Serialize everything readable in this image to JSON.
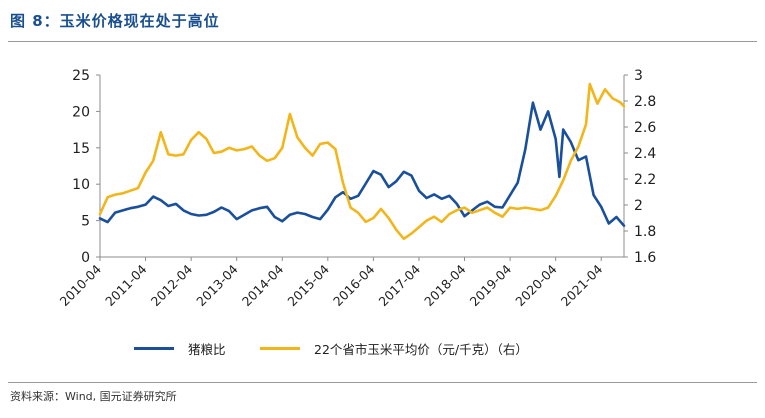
{
  "header": {
    "title": "图 8：玉米价格现在处于高位"
  },
  "footer": {
    "source": "资料来源：Wind, 国元证券研究所"
  },
  "chart_data": {
    "type": "line",
    "title": "",
    "xlabel": "",
    "ylabel": "",
    "x_tick_labels": [
      "2010-04",
      "2011-04",
      "2012-04",
      "2013-04",
      "2014-04",
      "2015-04",
      "2016-04",
      "2017-04",
      "2018-04",
      "2019-04",
      "2020-04",
      "2021-04"
    ],
    "x_range": [
      "2010-04",
      "2021-10"
    ],
    "y_left": {
      "ylim": [
        0,
        25
      ],
      "ticks": [
        "0",
        "5",
        "10",
        "15",
        "20",
        "25"
      ]
    },
    "y_right": {
      "ylim": [
        1.6,
        3.0
      ],
      "ticks": [
        "1.6",
        "1.8",
        "2",
        "2.2",
        "2.4",
        "2.6",
        "2.8",
        "3"
      ]
    },
    "grid": false,
    "legend_position": "bottom",
    "series": [
      {
        "name": "猪粮比",
        "axis": "left",
        "color": "#1a4f9c",
        "points": [
          [
            "2010-04",
            5.3
          ],
          [
            "2010-06",
            4.8
          ],
          [
            "2010-08",
            6.1
          ],
          [
            "2010-10",
            6.4
          ],
          [
            "2010-12",
            6.7
          ],
          [
            "2011-02",
            6.9
          ],
          [
            "2011-04",
            7.2
          ],
          [
            "2011-06",
            8.3
          ],
          [
            "2011-08",
            7.8
          ],
          [
            "2011-10",
            7.0
          ],
          [
            "2011-12",
            7.3
          ],
          [
            "2012-02",
            6.4
          ],
          [
            "2012-04",
            5.9
          ],
          [
            "2012-06",
            5.7
          ],
          [
            "2012-08",
            5.8
          ],
          [
            "2012-10",
            6.2
          ],
          [
            "2012-12",
            6.8
          ],
          [
            "2013-02",
            6.3
          ],
          [
            "2013-04",
            5.2
          ],
          [
            "2013-06",
            5.8
          ],
          [
            "2013-08",
            6.4
          ],
          [
            "2013-10",
            6.7
          ],
          [
            "2013-12",
            6.9
          ],
          [
            "2014-02",
            5.5
          ],
          [
            "2014-04",
            4.9
          ],
          [
            "2014-06",
            5.8
          ],
          [
            "2014-08",
            6.1
          ],
          [
            "2014-10",
            5.9
          ],
          [
            "2014-12",
            5.5
          ],
          [
            "2015-02",
            5.2
          ],
          [
            "2015-04",
            6.5
          ],
          [
            "2015-06",
            8.2
          ],
          [
            "2015-08",
            8.9
          ],
          [
            "2015-10",
            8.0
          ],
          [
            "2015-12",
            8.4
          ],
          [
            "2016-02",
            10.1
          ],
          [
            "2016-04",
            11.8
          ],
          [
            "2016-06",
            11.3
          ],
          [
            "2016-08",
            9.6
          ],
          [
            "2016-10",
            10.4
          ],
          [
            "2016-12",
            11.7
          ],
          [
            "2017-02",
            11.2
          ],
          [
            "2017-04",
            9.1
          ],
          [
            "2017-06",
            8.1
          ],
          [
            "2017-08",
            8.6
          ],
          [
            "2017-10",
            8.0
          ],
          [
            "2017-12",
            8.4
          ],
          [
            "2018-02",
            7.3
          ],
          [
            "2018-04",
            5.6
          ],
          [
            "2018-06",
            6.4
          ],
          [
            "2018-08",
            7.2
          ],
          [
            "2018-10",
            7.6
          ],
          [
            "2018-12",
            6.9
          ],
          [
            "2019-02",
            6.8
          ],
          [
            "2019-04",
            8.5
          ],
          [
            "2019-06",
            10.2
          ],
          [
            "2019-08",
            14.8
          ],
          [
            "2019-10",
            21.2
          ],
          [
            "2019-12",
            17.5
          ],
          [
            "2020-02",
            20.0
          ],
          [
            "2020-04",
            16.2
          ],
          [
            "2020-05",
            11.0
          ],
          [
            "2020-06",
            17.5
          ],
          [
            "2020-08",
            15.8
          ],
          [
            "2020-10",
            13.3
          ],
          [
            "2020-12",
            13.8
          ],
          [
            "2021-02",
            8.5
          ],
          [
            "2021-04",
            6.9
          ],
          [
            "2021-06",
            4.6
          ],
          [
            "2021-08",
            5.5
          ],
          [
            "2021-10",
            4.3
          ]
        ]
      },
      {
        "name": "22个省市玉米平均价（元/千克）（右）",
        "axis": "right",
        "color": "#f2b61a",
        "points": [
          [
            "2010-04",
            1.93
          ],
          [
            "2010-06",
            2.06
          ],
          [
            "2010-08",
            2.08
          ],
          [
            "2010-10",
            2.09
          ],
          [
            "2010-12",
            2.11
          ],
          [
            "2011-02",
            2.13
          ],
          [
            "2011-04",
            2.25
          ],
          [
            "2011-06",
            2.34
          ],
          [
            "2011-08",
            2.56
          ],
          [
            "2011-10",
            2.39
          ],
          [
            "2011-12",
            2.38
          ],
          [
            "2012-02",
            2.39
          ],
          [
            "2012-04",
            2.5
          ],
          [
            "2012-06",
            2.56
          ],
          [
            "2012-08",
            2.51
          ],
          [
            "2012-10",
            2.4
          ],
          [
            "2012-12",
            2.41
          ],
          [
            "2013-02",
            2.44
          ],
          [
            "2013-04",
            2.42
          ],
          [
            "2013-06",
            2.43
          ],
          [
            "2013-08",
            2.45
          ],
          [
            "2013-10",
            2.38
          ],
          [
            "2013-12",
            2.34
          ],
          [
            "2014-02",
            2.36
          ],
          [
            "2014-04",
            2.44
          ],
          [
            "2014-06",
            2.7
          ],
          [
            "2014-08",
            2.52
          ],
          [
            "2014-10",
            2.44
          ],
          [
            "2014-12",
            2.38
          ],
          [
            "2015-02",
            2.47
          ],
          [
            "2015-04",
            2.48
          ],
          [
            "2015-06",
            2.43
          ],
          [
            "2015-08",
            2.17
          ],
          [
            "2015-10",
            1.98
          ],
          [
            "2015-12",
            1.94
          ],
          [
            "2016-02",
            1.87
          ],
          [
            "2016-04",
            1.9
          ],
          [
            "2016-06",
            1.97
          ],
          [
            "2016-08",
            1.9
          ],
          [
            "2016-10",
            1.81
          ],
          [
            "2016-12",
            1.74
          ],
          [
            "2017-02",
            1.78
          ],
          [
            "2017-04",
            1.83
          ],
          [
            "2017-06",
            1.88
          ],
          [
            "2017-08",
            1.91
          ],
          [
            "2017-10",
            1.87
          ],
          [
            "2017-12",
            1.93
          ],
          [
            "2018-02",
            1.96
          ],
          [
            "2018-04",
            1.98
          ],
          [
            "2018-06",
            1.94
          ],
          [
            "2018-08",
            1.96
          ],
          [
            "2018-10",
            1.98
          ],
          [
            "2018-12",
            1.94
          ],
          [
            "2019-02",
            1.91
          ],
          [
            "2019-04",
            1.98
          ],
          [
            "2019-06",
            1.97
          ],
          [
            "2019-08",
            1.98
          ],
          [
            "2019-10",
            1.97
          ],
          [
            "2019-12",
            1.96
          ],
          [
            "2020-02",
            1.98
          ],
          [
            "2020-04",
            2.07
          ],
          [
            "2020-06",
            2.19
          ],
          [
            "2020-08",
            2.34
          ],
          [
            "2020-10",
            2.45
          ],
          [
            "2020-12",
            2.62
          ],
          [
            "2021-01",
            2.93
          ],
          [
            "2021-03",
            2.78
          ],
          [
            "2021-05",
            2.89
          ],
          [
            "2021-07",
            2.82
          ],
          [
            "2021-09",
            2.79
          ],
          [
            "2021-10",
            2.76
          ]
        ]
      }
    ]
  }
}
